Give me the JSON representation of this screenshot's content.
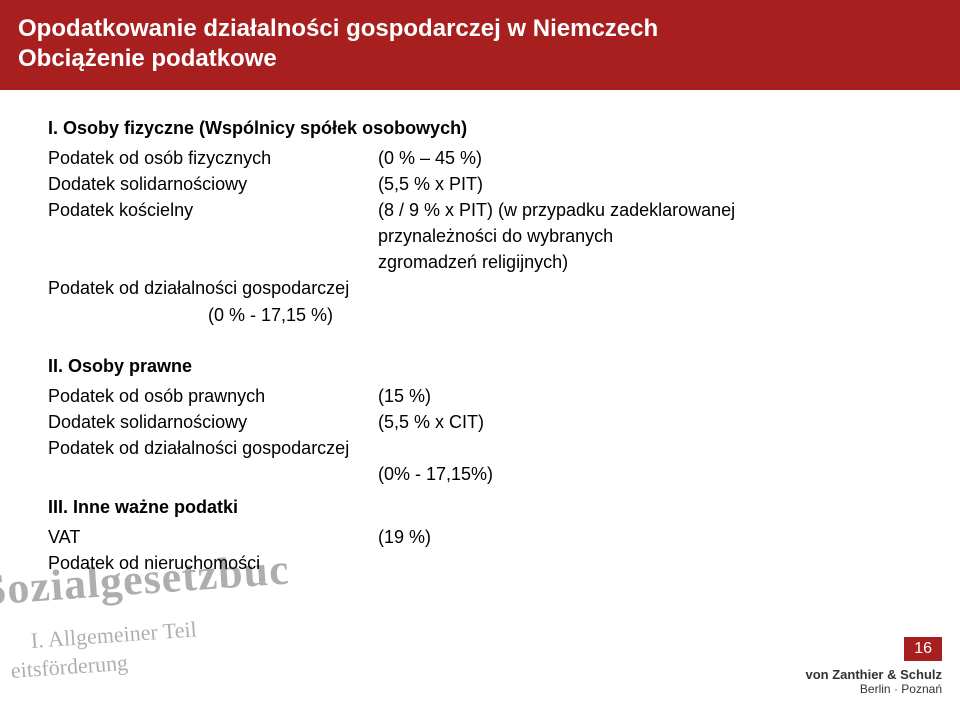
{
  "header": {
    "line1": "Opodatkowanie działalności gospodarczej w Niemczech",
    "line2": "Obciążenie podatkowe"
  },
  "section1": {
    "title": "I. Osoby fizyczne (Wspólnicy spółek osobowych)",
    "rows": [
      {
        "label": "Podatek od osób fizycznych",
        "value": "(0 % – 45 %)"
      },
      {
        "label": "Dodatek solidarnościowy",
        "value": "(5,5 % x PIT)"
      },
      {
        "label": "Podatek kościelny",
        "value": "(8 / 9 % x PIT) (w przypadku zadeklarowanej"
      }
    ],
    "cont1": "przynależności do wybranych",
    "cont2": "zgromadzeń religijnych)",
    "trade": "Podatek od działalności gospodarczej",
    "trade_val": "(0 % - 17,15 %)"
  },
  "section2": {
    "title": "II. Osoby prawne",
    "rows": [
      {
        "label": "Podatek od osób prawnych",
        "value": "(15 %)"
      },
      {
        "label": "Dodatek solidarnościowy",
        "value": "(5,5 % x CIT)"
      }
    ],
    "trade": "Podatek od działalności gospodarczej",
    "trade_val": "(0% - 17,15%)"
  },
  "section3": {
    "title": "III.  Inne ważne podatki",
    "rows": [
      {
        "label": "VAT",
        "value": "(19 %)"
      },
      {
        "label": "Podatek od nieruchomości",
        "value": ""
      }
    ]
  },
  "footer": {
    "page": "16",
    "firm": "von Zanthier & Schulz",
    "city1": "Berlin",
    "city2": "Poznań"
  },
  "bg": {
    "l1": "Sozialgesetzbuc",
    "l2": "I. Allgemeiner Teil",
    "l3": "eitsförderung"
  }
}
